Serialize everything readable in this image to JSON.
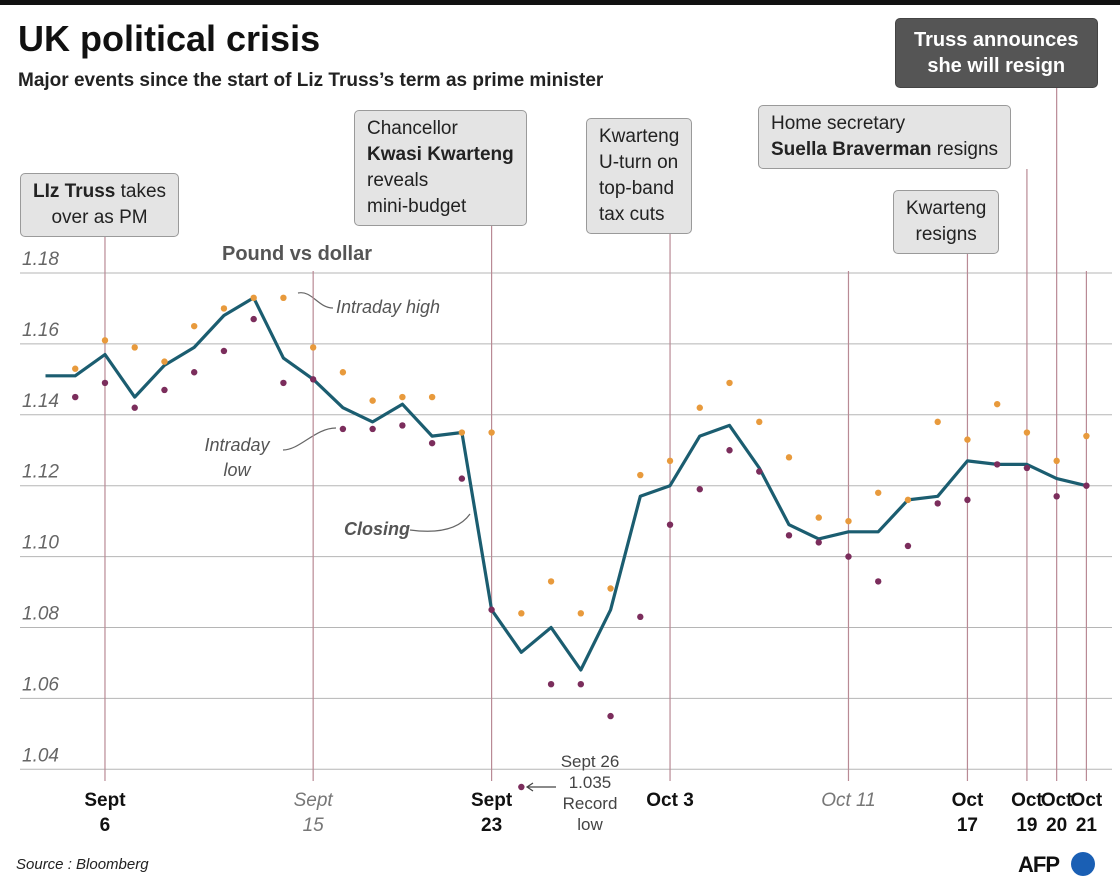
{
  "chart_data": {
    "type": "line",
    "title": "UK political crisis",
    "subtitle": "Major events since the start of Liz Truss’s term as prime minister",
    "series_title": "Pound vs dollar",
    "categories": [
      null,
      null,
      "Sept 6",
      null,
      null,
      null,
      null,
      null,
      null,
      "Sept 15",
      null,
      null,
      null,
      null,
      null,
      "Sept 23",
      null,
      null,
      null,
      null,
      null,
      "Oct 3",
      null,
      null,
      null,
      null,
      null,
      "Oct 11",
      null,
      null,
      null,
      "Oct 17",
      null,
      "Oct 19",
      "Oct 20",
      "Oct 21"
    ],
    "category_styles": [
      null,
      null,
      "bold",
      null,
      null,
      null,
      null,
      null,
      null,
      "italic",
      null,
      null,
      null,
      null,
      null,
      "bold",
      null,
      null,
      null,
      null,
      null,
      "bold",
      null,
      null,
      null,
      null,
      null,
      "italic",
      null,
      null,
      null,
      "bold",
      null,
      "bold",
      "bold",
      "bold"
    ],
    "series": [
      {
        "name": "Closing",
        "color": "#1b5d70",
        "marker": "line",
        "values": [
          1.151,
          1.151,
          1.157,
          1.145,
          1.154,
          1.159,
          1.168,
          1.173,
          1.156,
          1.15,
          1.142,
          1.138,
          1.143,
          1.134,
          1.135,
          1.085,
          1.073,
          1.08,
          1.068,
          1.085,
          1.117,
          1.12,
          1.134,
          1.137,
          1.125,
          1.109,
          1.105,
          1.107,
          1.107,
          1.116,
          1.117,
          1.127,
          1.126,
          1.126,
          1.122,
          1.12
        ]
      },
      {
        "name": "Intraday high",
        "color": "#e89a3c",
        "marker": "dot",
        "values": [
          null,
          1.153,
          1.161,
          1.159,
          1.155,
          1.165,
          1.17,
          1.173,
          1.173,
          1.159,
          1.152,
          1.144,
          1.145,
          1.145,
          1.135,
          1.135,
          1.084,
          1.093,
          1.084,
          1.091,
          1.123,
          1.127,
          1.142,
          1.149,
          1.138,
          1.128,
          1.111,
          1.11,
          1.118,
          1.116,
          1.138,
          1.133,
          1.143,
          1.135,
          1.127,
          1.134
        ]
      },
      {
        "name": "Intraday low",
        "color": "#7b2d5c",
        "marker": "dot",
        "values": [
          null,
          1.145,
          1.149,
          1.142,
          1.147,
          1.152,
          1.158,
          1.167,
          1.149,
          1.15,
          1.136,
          1.136,
          1.137,
          1.132,
          1.122,
          1.085,
          1.035,
          1.064,
          1.064,
          1.055,
          1.083,
          1.109,
          1.119,
          1.13,
          1.124,
          1.106,
          1.104,
          1.1,
          1.093,
          1.103,
          1.115,
          1.116,
          1.126,
          1.125,
          1.117,
          1.12
        ]
      }
    ],
    "ylim": [
      1.035,
      1.18
    ],
    "yticks": [
      1.04,
      1.06,
      1.08,
      {
        "value": 1.1,
        "label": "1.10"
      },
      1.12,
      1.14,
      1.16,
      1.18
    ],
    "grid": true,
    "events": [
      {
        "date": "Sept 6",
        "lines": [
          [
            {
              "text": "LIz Truss",
              "bold": true
            },
            {
              "text": " takes"
            }
          ],
          [
            {
              "text": "over as PM"
            }
          ]
        ]
      },
      {
        "date": "Sept 23",
        "lines": [
          [
            {
              "text": "Chancellor"
            }
          ],
          [
            {
              "text": "Kwasi Kwarteng",
              "bold": true
            }
          ],
          [
            {
              "text": "reveals"
            }
          ],
          [
            {
              "text": "mini-budget"
            }
          ]
        ]
      },
      {
        "date": "Oct 3",
        "lines": [
          [
            {
              "text": "Kwarteng"
            }
          ],
          [
            {
              "text": "U-turn on"
            }
          ],
          [
            {
              "text": "top-band"
            }
          ],
          [
            {
              "text": "tax cuts"
            }
          ]
        ]
      },
      {
        "date": "Oct 19",
        "lines": [
          [
            {
              "text": "Home secretary"
            }
          ],
          [
            {
              "text": "Suella Braverman",
              "bold": true
            },
            {
              "text": " resigns"
            }
          ]
        ]
      },
      {
        "date": "Oct 17",
        "lines": [
          [
            {
              "text": "Kwarteng"
            }
          ],
          [
            {
              "text": "resigns"
            }
          ]
        ]
      },
      {
        "date": "Oct 20",
        "highlight": true,
        "lines": [
          [
            {
              "text": "Truss announces",
              "bold": true
            }
          ],
          [
            {
              "text": "she will resign",
              "bold": true
            }
          ]
        ]
      }
    ],
    "annotations": {
      "record_low": {
        "date": "Sept 26",
        "label": "Record low"
      }
    },
    "source": "Source : Bloomberg",
    "logo": "AFP"
  }
}
